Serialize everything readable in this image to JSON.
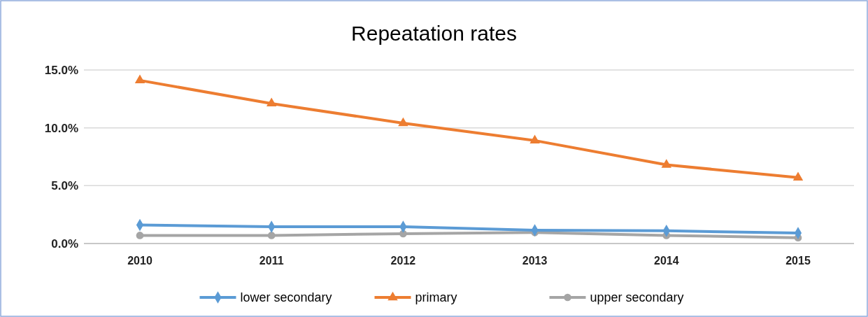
{
  "chart_data": {
    "type": "line",
    "title": "Repeatation rates",
    "categories": [
      "2010",
      "2011",
      "2012",
      "2013",
      "2014",
      "2015"
    ],
    "series": [
      {
        "name": "lower secondary",
        "color": "#5b9bd5",
        "marker": "diamond",
        "values": [
          1.6,
          1.45,
          1.45,
          1.15,
          1.1,
          0.9
        ]
      },
      {
        "name": "primary",
        "color": "#ed7d31",
        "marker": "triangle",
        "values": [
          14.1,
          12.1,
          10.4,
          8.9,
          6.8,
          5.7
        ]
      },
      {
        "name": "upper secondary",
        "color": "#a5a5a5",
        "marker": "circle",
        "values": [
          0.7,
          0.7,
          0.85,
          0.95,
          0.7,
          0.5
        ]
      }
    ],
    "ylim": [
      0,
      15
    ],
    "yticks": [
      {
        "value": 0,
        "label": "0.0%"
      },
      {
        "value": 5,
        "label": "5.0%"
      },
      {
        "value": 10,
        "label": "10.0%"
      },
      {
        "value": 15,
        "label": "15.0%"
      }
    ],
    "grid": "y",
    "legend": "bottom",
    "line_style": "solid"
  }
}
